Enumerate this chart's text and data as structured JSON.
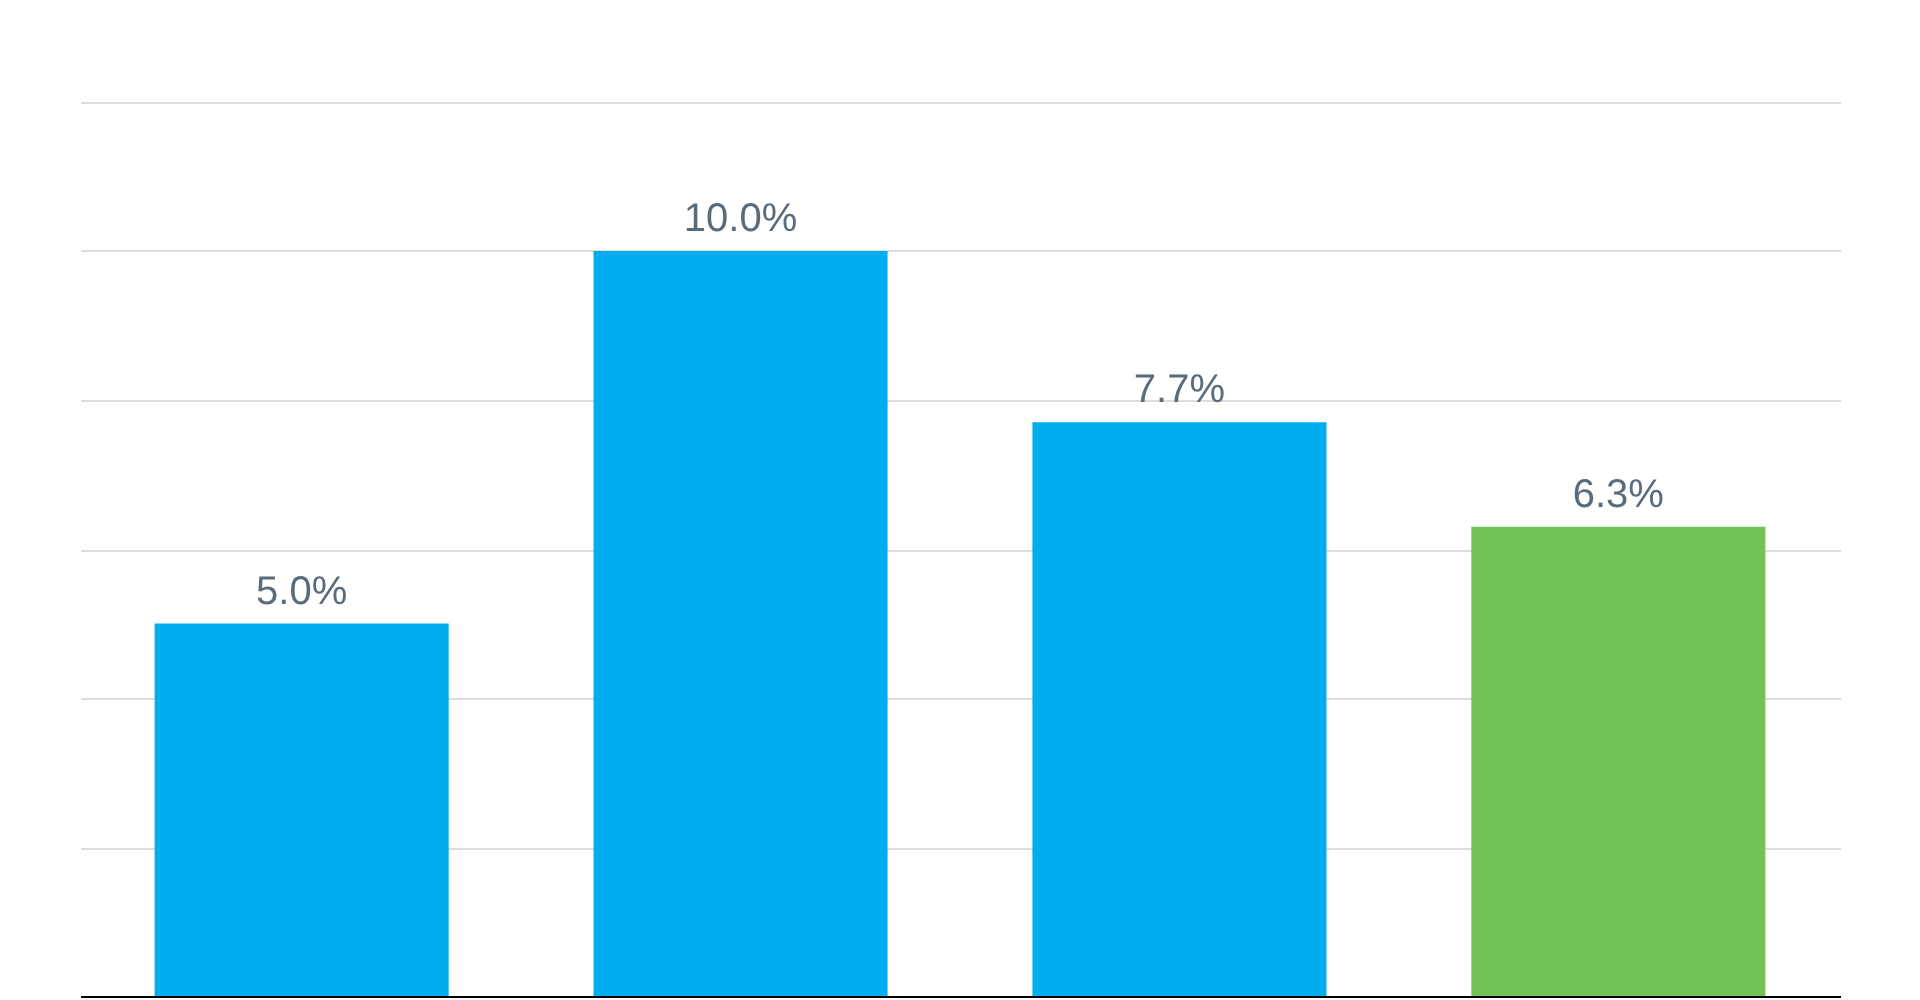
{
  "chart_data": {
    "type": "bar",
    "categories": [
      null,
      null,
      null,
      null
    ],
    "values": [
      5.0,
      10.0,
      7.7,
      6.3
    ],
    "colors": [
      "#00adef",
      "#00adef",
      "#00adef",
      "#72c257"
    ],
    "value_labels": [
      "5.0%",
      "10.0%",
      "7.7%",
      "6.3%"
    ],
    "ylim": [
      0,
      12
    ],
    "yticks": [
      {
        "value": 0,
        "label": null
      },
      {
        "value": 2,
        "label": null
      },
      {
        "value": 4,
        "label": null
      },
      {
        "value": 6,
        "label": null
      },
      {
        "value": 8,
        "label": null
      },
      {
        "value": 10,
        "label": null
      },
      {
        "value": 12,
        "label": null
      }
    ],
    "grid": "y"
  }
}
